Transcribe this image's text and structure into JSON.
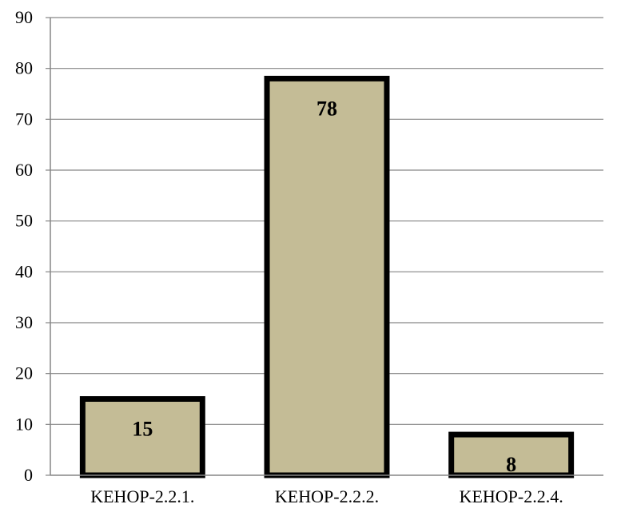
{
  "chart_data": {
    "type": "bar",
    "title": "",
    "xlabel": "",
    "ylabel": "",
    "categories": [
      "KEHOP-2.2.1.",
      "KEHOP-2.2.2.",
      "KEHOP-2.2.4."
    ],
    "values": [
      15,
      78,
      8
    ],
    "data_labels": [
      "15",
      "78",
      "8"
    ],
    "ylim": [
      0,
      90
    ],
    "y_ticks": [
      0,
      10,
      20,
      30,
      40,
      50,
      60,
      70,
      80,
      90
    ],
    "grid": true,
    "legend": "none",
    "bar_fill": "#c4bc96",
    "bar_stroke": "#000000",
    "grid_color": "#868686"
  }
}
